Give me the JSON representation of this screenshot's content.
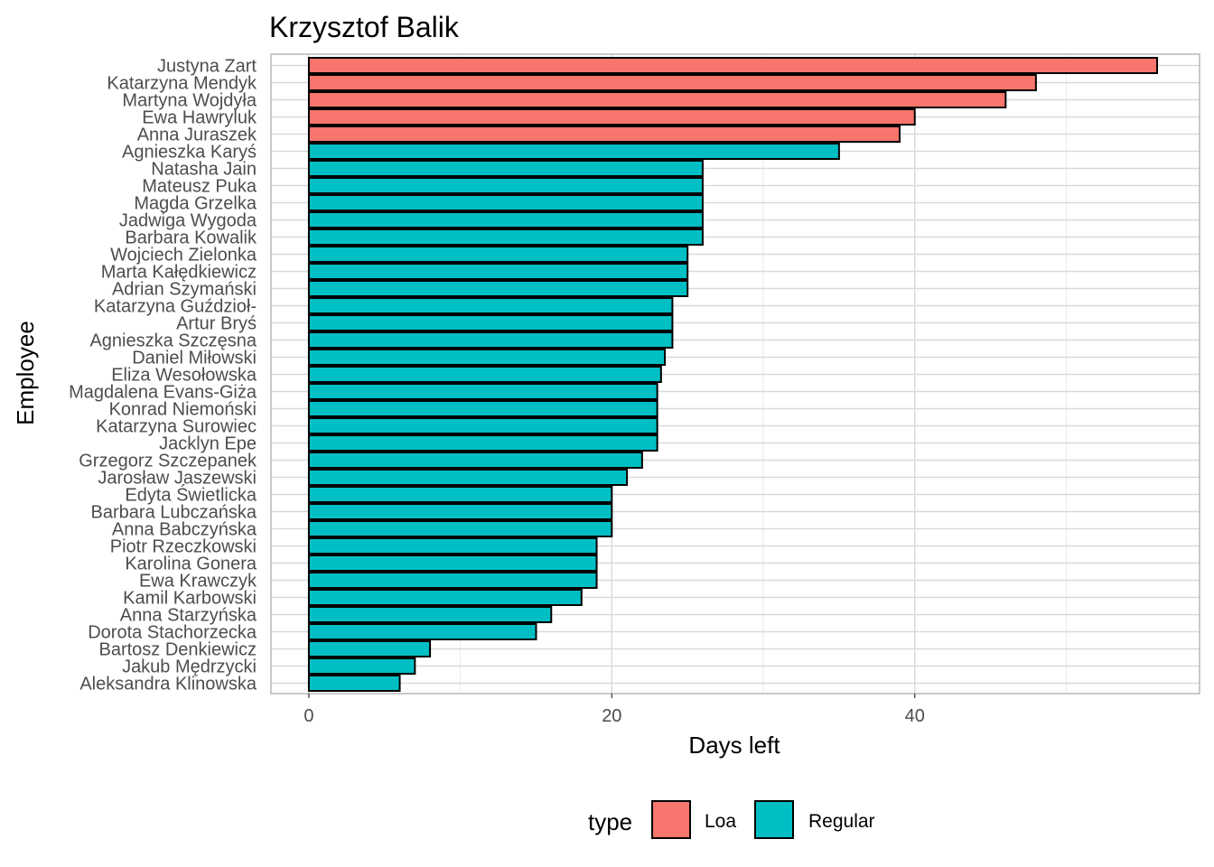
{
  "chart_data": {
    "type": "bar",
    "orientation": "horizontal",
    "title": "Krzysztof Balik",
    "xlabel": "Days left",
    "ylabel": "Employee",
    "xlim": [
      -2.5,
      58.8
    ],
    "xticks": [
      0,
      20,
      40
    ],
    "grid": true,
    "legend": {
      "title": "type",
      "placement": "bottom",
      "entries": [
        {
          "label": "Loa",
          "color": "#F8766D"
        },
        {
          "label": "Regular",
          "color": "#00BFC4"
        }
      ]
    },
    "categories": [
      "Justyna Zart",
      "Katarzyna Mendyk",
      "Martyna Wojdyła",
      "Ewa Hawryluk",
      "Anna Juraszek",
      "Agnieszka Karyś",
      "Natasha Jain",
      "Mateusz Puka",
      "Magda Grzelka",
      "Jadwiga Wygoda",
      "Barbara Kowalik",
      "Wojciech Zielonka",
      "Marta Kałędkiewicz",
      "Adrian Szymański",
      "Katarzyna Guździoł-",
      "Artur Bryś",
      "Agnieszka Szczęsna",
      "Daniel Miłowski",
      "Eliza Wesołowska",
      "Magdalena Evans-Giża",
      "Konrad Niemoński",
      "Katarzyna Surowiec",
      "Jacklyn Epe",
      "Grzegorz Szczepanek",
      "Jarosław Jaszewski",
      "Edyta Świetlicka",
      "Barbara Lubczańska",
      "Anna Babczyńska",
      "Piotr Rzeczkowski",
      "Karolina Gonera",
      "Ewa Krawczyk",
      "Kamil Karbowski",
      "Anna Starzyńska",
      "Dorota Stachorzecka",
      "Bartosz Denkiewicz",
      "Jakub Mędrzycki",
      "Aleksandra Klinowska"
    ],
    "values": [
      56,
      48,
      46,
      40,
      39,
      35,
      26,
      26,
      26,
      26,
      26,
      25,
      25,
      25,
      24,
      24,
      24,
      23.5,
      23.25,
      23,
      23,
      23,
      23,
      22,
      21,
      20,
      20,
      20,
      19,
      19,
      19,
      18,
      16,
      15,
      8,
      7,
      6
    ],
    "types": [
      "Loa",
      "Loa",
      "Loa",
      "Loa",
      "Loa",
      "Regular",
      "Regular",
      "Regular",
      "Regular",
      "Regular",
      "Regular",
      "Regular",
      "Regular",
      "Regular",
      "Regular",
      "Regular",
      "Regular",
      "Regular",
      "Regular",
      "Regular",
      "Regular",
      "Regular",
      "Regular",
      "Regular",
      "Regular",
      "Regular",
      "Regular",
      "Regular",
      "Regular",
      "Regular",
      "Regular",
      "Regular",
      "Regular",
      "Regular",
      "Regular",
      "Regular",
      "Regular"
    ]
  }
}
